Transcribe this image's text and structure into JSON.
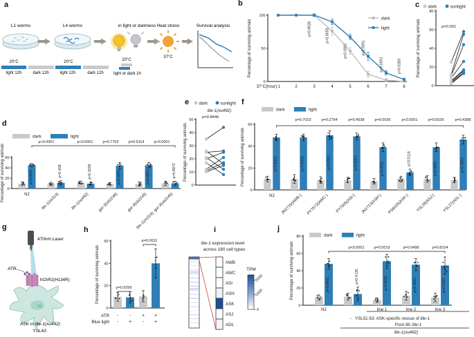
{
  "colors": {
    "blue": "#2e7fb8",
    "gray": "#c9c9c9",
    "grayline": "#b5b5b5",
    "heat": "#1d4e9b",
    "faint": "#b9c6e4",
    "red": "#cc4437",
    "teal": "#cde7e0",
    "tealstroke": "#9cc9ba",
    "pink": "#c77fb3",
    "yellow": "#f3c231",
    "orange": "#f0a33c"
  },
  "panels": {
    "a": {
      "label": "a",
      "steps": {
        "s1": "L1 worms",
        "s2": "L4 worms",
        "s3": "in light or darkness",
        "s4": "Heat stress",
        "s5": "Survival analysis"
      },
      "temps": {
        "t1": "20°C",
        "t2": "20°C",
        "t3": "20°C",
        "t4": "37°C"
      },
      "timeline": {
        "b1": "light 12h",
        "b2": "dark 12h",
        "b3": "light 12h",
        "b4": "dark 12h",
        "b5": "light or dark 1h"
      }
    },
    "b": {
      "label": "b"
    },
    "c": {
      "label": "c"
    },
    "d": {
      "label": "d"
    },
    "e": {
      "label": "e"
    },
    "f": {
      "label": "f"
    },
    "g": {
      "label": "g",
      "laser": "470nm Laser",
      "atr": "ATR",
      "channel": "hChR2(H134R)",
      "cell_prefix": "ASK in ",
      "cell_italic": "lite-1(xu492)",
      "strain": "YSL43"
    },
    "h": {
      "label": "h"
    },
    "i": {
      "label": "i",
      "title_italic": "lite-1",
      "title_rest": " expression level",
      "title_line2": "across 180 cell types",
      "cells": [
        "AWB",
        "AWC",
        "ASI",
        "ASH",
        "ASK",
        "ASJ",
        "ADL"
      ],
      "highlight_index": 4,
      "colorbar_title": "TPM",
      "colorbar_ticks": [
        "0",
        "1000",
        "2000"
      ]
    },
    "j": {
      "label": "j"
    }
  },
  "chart_data": [
    {
      "panel": "b",
      "type": "line",
      "title": "",
      "xlabel_prefix": "37°C(hour):",
      "x": [
        1,
        2,
        3,
        4,
        5,
        6,
        7,
        8
      ],
      "ylabel": "Percentage of surviving animals",
      "ylim": [
        0,
        100
      ],
      "yticks": [
        0,
        50,
        100
      ],
      "legend": [
        "dark",
        "light"
      ],
      "series": [
        {
          "name": "dark",
          "values": [
            100,
            100,
            100,
            76,
            46,
            11,
            2,
            0
          ],
          "err": [
            0,
            0,
            1,
            5,
            4,
            3,
            1,
            0
          ]
        },
        {
          "name": "light",
          "values": [
            100,
            100,
            100,
            90,
            67,
            38,
            13,
            3
          ],
          "err": [
            0,
            0,
            1,
            3,
            3,
            5,
            2,
            1
          ]
        }
      ],
      "pvalues": [
        {
          "x": 3,
          "label": "p=0.6526"
        },
        {
          "x": 4,
          "label": "p=0.0055"
        },
        {
          "x": 5,
          "label": "p<0.0001"
        },
        {
          "x": 6,
          "label": "p<0.0001"
        },
        {
          "x": 7,
          "label": "p<0.0001"
        },
        {
          "x": 8,
          "label": "p=0.0283"
        }
      ]
    },
    {
      "panel": "c",
      "type": "paired",
      "legend": [
        "dark",
        "sunlight"
      ],
      "p": "p=0.001",
      "ylabel": "Percentage of surviving animals",
      "ylim": [
        0,
        80
      ],
      "yticks": [
        0,
        20,
        40,
        60,
        80
      ],
      "pairs": [
        [
          25,
          58
        ],
        [
          12,
          55
        ],
        [
          10,
          44
        ],
        [
          8,
          26
        ],
        [
          5,
          17
        ],
        [
          4,
          16
        ],
        [
          3,
          14
        ],
        [
          2,
          13
        ]
      ]
    },
    {
      "panel": "d",
      "type": "bar",
      "legend": [
        "dark",
        "light"
      ],
      "ylabel": "Percentage of surviving animals",
      "ylim": [
        0,
        60
      ],
      "yticks": [
        0,
        20,
        40,
        60
      ],
      "categories": [
        "N2",
        "lite-1(ce314)",
        "lite-1(xu492)",
        "gur-3(ok2246)",
        "gur-3(ok2245)",
        "lite-1(ce314); gur-3(ok2245)"
      ],
      "dark": [
        9.5,
        9,
        11.5,
        9,
        9,
        10
      ],
      "light": [
        45,
        11,
        9.5,
        44,
        45,
        10
      ],
      "dark_err": [
        3,
        3,
        3,
        2.5,
        4,
        4
      ],
      "light_err": [
        3,
        4,
        3,
        6,
        5,
        4
      ],
      "bar_p": [
        "p<0.0001",
        "p=0.408",
        "p=0.3205",
        "p<0.0001",
        "p<0.0001",
        "p=0.8972"
      ],
      "top_p": [
        "p<0.0001",
        "p<0.0001",
        "p=0.7702",
        "p=0.9114",
        "p<0.0001"
      ]
    },
    {
      "panel": "e",
      "type": "paired",
      "legend": [
        "dark",
        "sunlight"
      ],
      "title": "lite-1(xu492)",
      "p": "p=0.8446",
      "ylabel": "Percentage of surviving animals",
      "ylim": [
        0,
        50
      ],
      "yticks": [
        0,
        10,
        20,
        30,
        40,
        50
      ],
      "pairs": [
        [
          35,
          44
        ],
        [
          26,
          16
        ],
        [
          25,
          26
        ],
        [
          21,
          12
        ],
        [
          20,
          25
        ],
        [
          17,
          8
        ],
        [
          12,
          21
        ],
        [
          11,
          17
        ],
        [
          10,
          15
        ]
      ]
    },
    {
      "panel": "f",
      "type": "bar",
      "legend": [
        "dark",
        "light"
      ],
      "ylabel": "Percentage of surviving animals",
      "ylim": [
        0,
        60
      ],
      "yticks": [
        0,
        20,
        40,
        60
      ],
      "categories": [
        "N2",
        "JN1715(AWB-)",
        "PY7572(AWC-)",
        "PY7505(ASI-)",
        "JN1713(ASH-)",
        "PS6025(ASK-)",
        "YSL26(ASJ-)",
        "YSL27(ADL-)"
      ],
      "dark": [
        10,
        10,
        9,
        9,
        8,
        10,
        10,
        9
      ],
      "light": [
        48,
        48,
        50,
        49,
        39,
        16,
        39,
        46
      ],
      "dark_err": [
        2.5,
        4,
        3,
        2.5,
        2.5,
        2.5,
        3,
        2.5
      ],
      "light_err": [
        3,
        3,
        4,
        3,
        4,
        3,
        4,
        4
      ],
      "bar_p": [
        "p<0.0001",
        "p<0.0001",
        "p<0.0001",
        "p<0.0001",
        "p<0.0001",
        "p=0.0116",
        "p<0.0001",
        "p<0.0001"
      ],
      "top_p": [
        "p=0.7023",
        "p=0.2794",
        "p=0.4538",
        "p=0.0036",
        "p<0.0001",
        "p=0.0026",
        "p=0.4388"
      ]
    },
    {
      "panel": "h",
      "type": "bar_single",
      "ylabel": "Percentage of surviving animals",
      "ylim": [
        0,
        60
      ],
      "yticks": [
        0,
        20,
        40,
        60
      ],
      "values": [
        10,
        9.5,
        10.5,
        40
      ],
      "errs": [
        4,
        5,
        5,
        13
      ],
      "colors": [
        "gray",
        "blue",
        "gray",
        "blue"
      ],
      "brackets": [
        {
          "from": 0,
          "to": 1,
          "label": "p=0.9256"
        },
        {
          "from": 2,
          "to": 3,
          "label": "p=0.0011"
        }
      ],
      "rows": [
        {
          "label": "ATR",
          "values": [
            "-",
            "-",
            "+",
            "+"
          ]
        },
        {
          "label": "Blue light",
          "values": [
            "-",
            "+",
            "-",
            "+"
          ]
        }
      ]
    },
    {
      "panel": "j",
      "type": "bar",
      "legend": [
        "dark",
        "light"
      ],
      "ylabel": "Percentage of surviving animals",
      "ylim": [
        0,
        80
      ],
      "yticks": [
        0,
        20,
        40,
        60,
        80
      ],
      "categories": [
        "N2",
        "",
        "line 1",
        "line 2",
        "line 3"
      ],
      "dark": [
        9,
        10,
        6,
        11,
        9
      ],
      "light": [
        48,
        13,
        51,
        47,
        46
      ],
      "dark_err": [
        3,
        4,
        2.5,
        5,
        5
      ],
      "light_err": [
        6,
        8,
        8,
        7,
        10
      ],
      "bar_p": [
        "p<0.0001",
        "p=0.4135",
        "p<0.0001",
        "p<0.0001",
        "p<0.0001"
      ],
      "top_p": [
        "p<0.0001",
        "p=0.5019",
        "p=0.9498",
        "p=0.8104"
      ],
      "notes": {
        "dash": "-",
        "rescue_main": "YSL51-53: ASK-specific rescue of ",
        "rescue_italic": "lite-1",
        "construct": "Psrd-36::lite-1",
        "genotype": "lite-1(xu492)"
      }
    }
  ]
}
